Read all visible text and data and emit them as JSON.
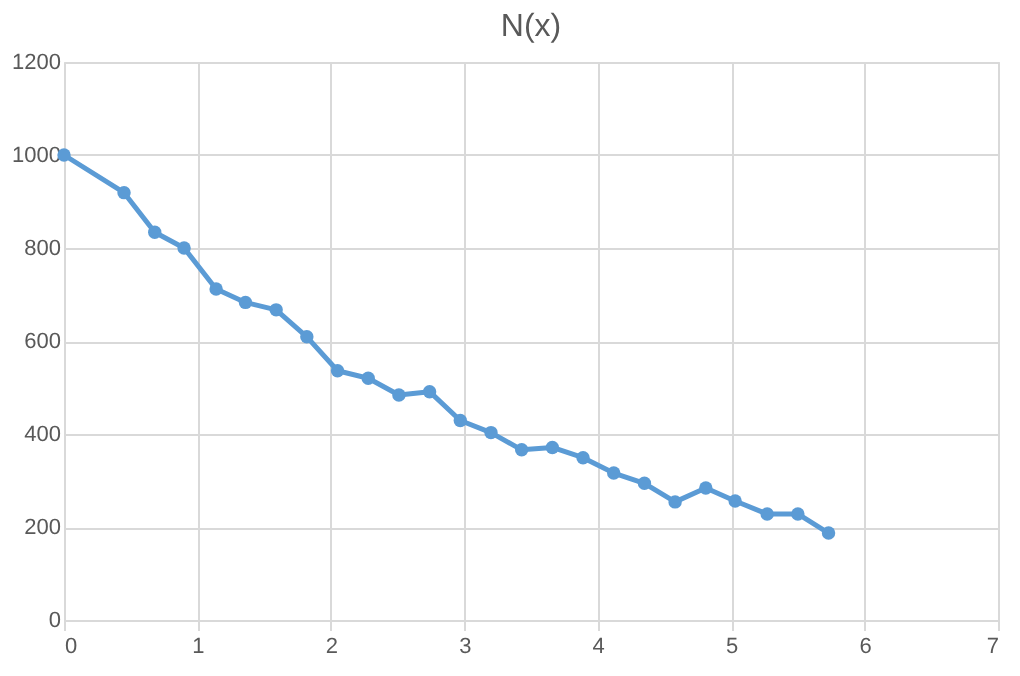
{
  "chart_data": {
    "type": "line",
    "title": "N(x)",
    "x": [
      0,
      0.45,
      0.68,
      0.9,
      1.14,
      1.36,
      1.59,
      1.82,
      2.05,
      2.28,
      2.51,
      2.74,
      2.97,
      3.2,
      3.43,
      3.66,
      3.89,
      4.12,
      4.35,
      4.58,
      4.81,
      5.03,
      5.27,
      5.5,
      5.73
    ],
    "series": [
      {
        "color": "#5b9bd5",
        "values": [
          1000,
          919,
          834,
          800,
          712,
          683,
          667,
          609,
          536,
          520,
          484,
          491,
          429,
          403,
          366,
          371,
          349,
          316,
          294,
          254,
          284,
          256,
          228,
          228,
          187
        ]
      }
    ],
    "xlim": [
      0,
      7
    ],
    "xticks": [
      0,
      1,
      2,
      3,
      4,
      5,
      6,
      7
    ],
    "ylim": [
      0,
      1200
    ],
    "yticks": [
      0,
      200,
      400,
      600,
      800,
      1000,
      1200
    ],
    "grid": true,
    "marker": "circle",
    "line_style": "solid"
  }
}
